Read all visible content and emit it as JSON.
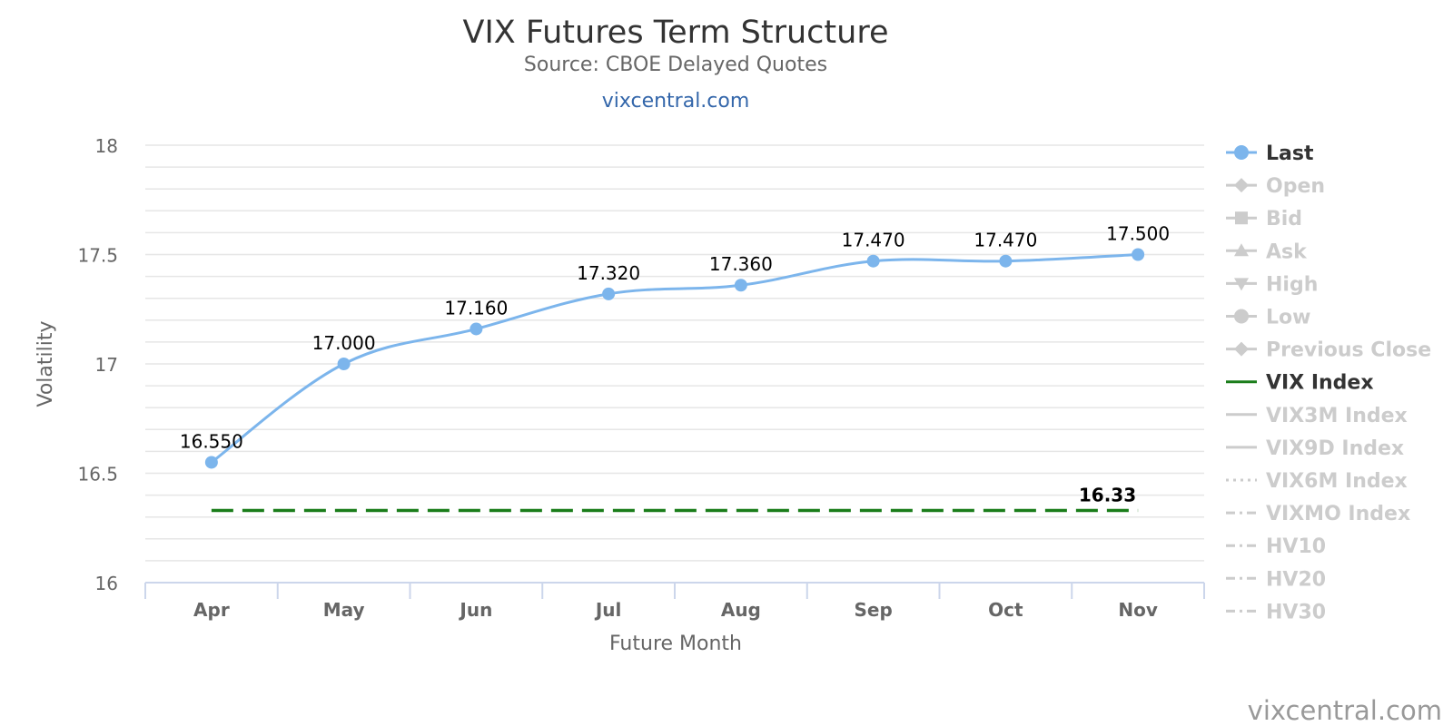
{
  "chart_data": {
    "type": "line",
    "title": "VIX Futures Term Structure",
    "subtitle": "Source: CBOE Delayed Quotes",
    "link": "vixcentral.com",
    "watermark": "vixcentral.com",
    "xlabel": "Future Month",
    "ylabel": "Volatility",
    "categories": [
      "Apr",
      "May",
      "Jun",
      "Jul",
      "Aug",
      "Sep",
      "Oct",
      "Nov"
    ],
    "ylim": [
      16,
      18
    ],
    "yticks": [
      "16",
      "16.5",
      "17",
      "17.5",
      "18"
    ],
    "grid": true,
    "legend_position": "right",
    "series": [
      {
        "name": "Last",
        "values": [
          16.55,
          17.0,
          17.16,
          17.32,
          17.36,
          17.47,
          17.47,
          17.5
        ],
        "labels": [
          "16.550",
          "17.000",
          "17.160",
          "17.320",
          "17.360",
          "17.470",
          "17.470",
          "17.500"
        ],
        "color": "#7cb5ec"
      },
      {
        "name": "VIX Index",
        "value": 16.33,
        "label": "16.33",
        "color": "#1a7d1a"
      }
    ],
    "legend": [
      {
        "name": "Last",
        "active": true,
        "color": "#7cb5ec",
        "symbol": "circle-line"
      },
      {
        "name": "Open",
        "active": false,
        "symbol": "diamond-line"
      },
      {
        "name": "Bid",
        "active": false,
        "symbol": "square-line"
      },
      {
        "name": "Ask",
        "active": false,
        "symbol": "triangle-line"
      },
      {
        "name": "High",
        "active": false,
        "symbol": "triangle-down-line"
      },
      {
        "name": "Low",
        "active": false,
        "symbol": "circle-line"
      },
      {
        "name": "Previous Close",
        "active": false,
        "symbol": "diamond-line"
      },
      {
        "name": "VIX Index",
        "active": true,
        "color": "#1a7d1a",
        "symbol": "line"
      },
      {
        "name": "VIX3M Index",
        "active": false,
        "symbol": "line"
      },
      {
        "name": "VIX9D Index",
        "active": false,
        "symbol": "line"
      },
      {
        "name": "VIX6M Index",
        "active": false,
        "symbol": "dot-line"
      },
      {
        "name": "VIXMO Index",
        "active": false,
        "symbol": "dash-dot-line"
      },
      {
        "name": "HV10",
        "active": false,
        "symbol": "dash-dot-line"
      },
      {
        "name": "HV20",
        "active": false,
        "symbol": "dash-dot-line"
      },
      {
        "name": "HV30",
        "active": false,
        "symbol": "dash-dot-line"
      }
    ],
    "inactive_color": "#cccccc",
    "active_text_color": "#333333"
  }
}
